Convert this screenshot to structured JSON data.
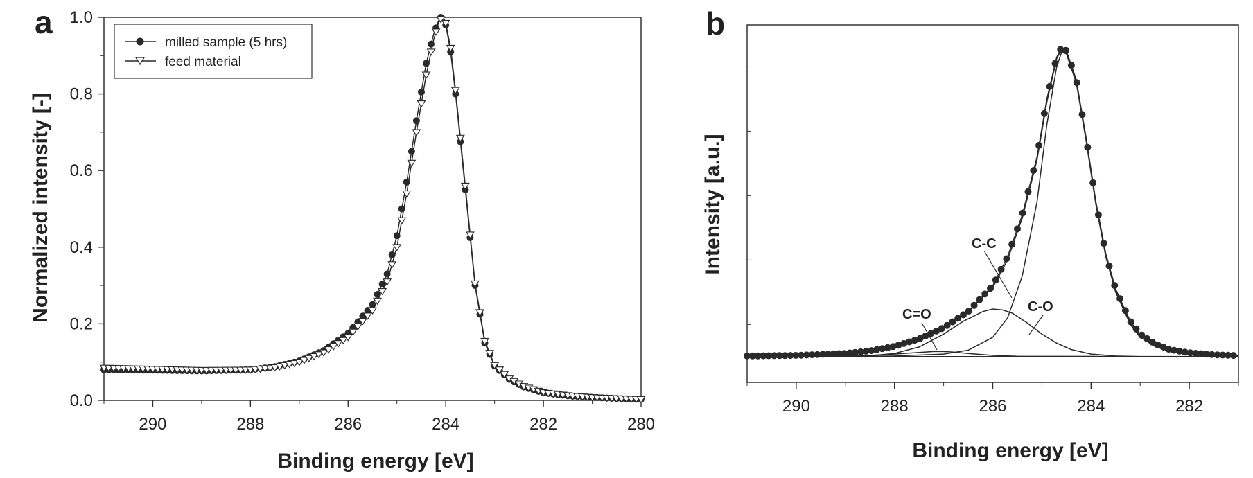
{
  "chart_data": [
    {
      "panel": "a",
      "type": "line",
      "xlabel": "Binding energy [eV]",
      "ylabel": "Normalized intensity [-]",
      "xlim": [
        291,
        280
      ],
      "ylim": [
        0,
        1
      ],
      "x_ticks": [
        "290",
        "288",
        "286",
        "284",
        "282",
        "280"
      ],
      "y_ticks": [
        "0.0",
        "0.2",
        "0.4",
        "0.6",
        "0.8",
        "1.0"
      ],
      "grid": false,
      "legend_placement": "top-left",
      "series": [
        {
          "name": "milled sample (5 hrs)",
          "marker": "circle-filled",
          "color": "#2a2a2a",
          "x": [
            291,
            290,
            289,
            288,
            287.5,
            287,
            286.5,
            286,
            285.5,
            285.2,
            285,
            284.8,
            284.6,
            284.4,
            284.25,
            284.15,
            284.1,
            284.05,
            284,
            283.9,
            283.8,
            283.6,
            283.4,
            283.2,
            283,
            282.7,
            282.4,
            282,
            281.5,
            281,
            280.5,
            280
          ],
          "y": [
            0.08,
            0.079,
            0.077,
            0.08,
            0.088,
            0.103,
            0.13,
            0.175,
            0.25,
            0.33,
            0.43,
            0.57,
            0.73,
            0.88,
            0.955,
            0.99,
            1.0,
            0.99,
            0.98,
            0.91,
            0.8,
            0.55,
            0.3,
            0.15,
            0.09,
            0.055,
            0.035,
            0.02,
            0.012,
            0.008,
            0.005,
            0.003
          ]
        },
        {
          "name": "feed material",
          "marker": "triangle-down-open",
          "color": "#2a2a2a",
          "x": [
            291,
            290,
            289,
            288,
            287.5,
            287,
            286.5,
            286,
            285.5,
            285.2,
            285,
            284.8,
            284.6,
            284.4,
            284.25,
            284.15,
            284.1,
            284.05,
            284,
            283.9,
            283.8,
            283.6,
            283.4,
            283.2,
            283,
            282.7,
            282.4,
            282,
            281.5,
            281,
            280.5,
            280
          ],
          "y": [
            0.085,
            0.082,
            0.079,
            0.08,
            0.086,
            0.1,
            0.125,
            0.165,
            0.235,
            0.31,
            0.4,
            0.54,
            0.7,
            0.85,
            0.94,
            0.985,
            0.995,
            1.0,
            0.985,
            0.92,
            0.81,
            0.56,
            0.305,
            0.155,
            0.092,
            0.057,
            0.037,
            0.021,
            0.013,
            0.008,
            0.005,
            0.003
          ]
        }
      ],
      "legend": [
        "milled sample (5 hrs)",
        "feed material"
      ]
    },
    {
      "panel": "b",
      "type": "line",
      "xlabel": "Binding energy [eV]",
      "ylabel": "Intensity [a.u.]",
      "xlim": [
        291,
        281
      ],
      "ylim": [
        -0.08,
        1.03
      ],
      "x_ticks": [
        "290",
        "288",
        "286",
        "284",
        "282"
      ],
      "y_ticks": [],
      "grid": false,
      "series": [
        {
          "name": "",
          "role": "measured",
          "marker": "circle-filled",
          "color": "#2a2a2a",
          "x": [
            291,
            290,
            289,
            288.5,
            288,
            287.5,
            287,
            286.5,
            286,
            285.7,
            285.4,
            285.1,
            284.9,
            284.7,
            284.6,
            284.5,
            284.3,
            284.1,
            283.9,
            283.7,
            283.5,
            283.2,
            283,
            282.7,
            282.4,
            282,
            281.5,
            281
          ],
          "y": [
            0.002,
            0.004,
            0.01,
            0.018,
            0.032,
            0.055,
            0.09,
            0.14,
            0.22,
            0.31,
            0.44,
            0.62,
            0.8,
            0.93,
            0.96,
            0.95,
            0.86,
            0.68,
            0.48,
            0.32,
            0.21,
            0.11,
            0.07,
            0.04,
            0.022,
            0.012,
            0.006,
            0.003
          ]
        },
        {
          "name": "",
          "role": "envelope",
          "marker": "none",
          "color": "#2a2a2a",
          "x": [
            291,
            290,
            289,
            288.5,
            288,
            287.5,
            287,
            286.5,
            286,
            285.7,
            285.4,
            285.1,
            284.9,
            284.7,
            284.6,
            284.5,
            284.3,
            284.1,
            283.9,
            283.7,
            283.5,
            283.2,
            283,
            282.7,
            282.4,
            282,
            281.5,
            281
          ],
          "y": [
            0.002,
            0.004,
            0.01,
            0.018,
            0.032,
            0.055,
            0.09,
            0.14,
            0.215,
            0.3,
            0.43,
            0.61,
            0.79,
            0.925,
            0.955,
            0.945,
            0.855,
            0.675,
            0.475,
            0.315,
            0.205,
            0.105,
            0.065,
            0.035,
            0.018,
            0.009,
            0.004,
            0.002
          ]
        },
        {
          "name": "",
          "role": "component",
          "label": "C-C",
          "marker": "none",
          "color": "#2a2a2a",
          "x": [
            291,
            288,
            287,
            286.5,
            286,
            285.7,
            285.4,
            285.1,
            284.9,
            284.7,
            284.6,
            284.5,
            284.3,
            284.1,
            283.9,
            283.7,
            283.5,
            283.2,
            283,
            282.7,
            282.4,
            282,
            281
          ],
          "y": [
            0,
            0.002,
            0.008,
            0.02,
            0.06,
            0.12,
            0.25,
            0.48,
            0.72,
            0.9,
            0.945,
            0.94,
            0.85,
            0.67,
            0.47,
            0.31,
            0.2,
            0.1,
            0.06,
            0.032,
            0.016,
            0.007,
            0.001
          ]
        },
        {
          "name": "",
          "role": "component",
          "label": "C-O",
          "marker": "none",
          "color": "#2a2a2a",
          "x": [
            291,
            288.5,
            288,
            287.5,
            287,
            286.6,
            286.2,
            286,
            285.8,
            285.6,
            285.3,
            285,
            284.7,
            284.4,
            284,
            283.5,
            283,
            281
          ],
          "y": [
            0,
            0.003,
            0.01,
            0.03,
            0.07,
            0.11,
            0.14,
            0.148,
            0.145,
            0.135,
            0.105,
            0.07,
            0.042,
            0.022,
            0.008,
            0.002,
            0,
            0
          ]
        },
        {
          "name": "",
          "role": "component",
          "label": "C=O",
          "marker": "none",
          "color": "#2a2a2a",
          "x": [
            291,
            289,
            288.5,
            288,
            287.5,
            287.2,
            287,
            286.8,
            286.5,
            286,
            285.5,
            281
          ],
          "y": [
            0,
            0.002,
            0.004,
            0.008,
            0.013,
            0.016,
            0.016,
            0.014,
            0.01,
            0.004,
            0.001,
            0
          ]
        },
        {
          "name": "",
          "role": "baseline",
          "marker": "none",
          "color": "#2a2a2a",
          "x": [
            291,
            281
          ],
          "y": [
            0,
            0
          ]
        }
      ],
      "annotations": [
        "C-C",
        "C-O",
        "C=O"
      ]
    }
  ]
}
